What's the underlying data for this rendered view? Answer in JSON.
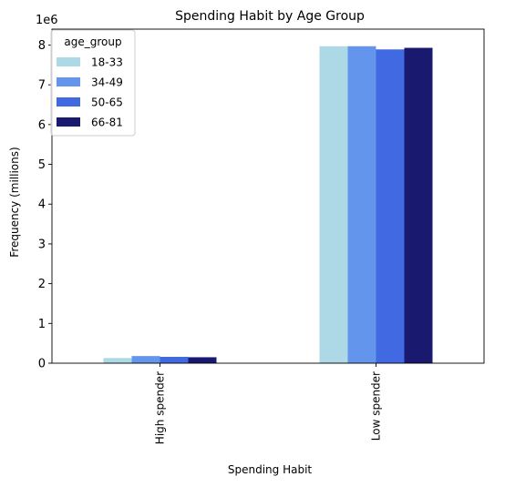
{
  "chart_data": {
    "type": "bar",
    "title": "Spending Habit by Age Group",
    "xlabel": "Spending Habit",
    "ylabel": "Frequency (millions)",
    "offset_label": "1e6",
    "categories": [
      "High spender",
      "Low spender"
    ],
    "series": [
      {
        "name": "18-33",
        "color": "#add8e6",
        "values": [
          130000,
          7970000
        ]
      },
      {
        "name": "34-49",
        "color": "#6495ed",
        "values": [
          180000,
          7970000
        ]
      },
      {
        "name": "50-65",
        "color": "#4169e1",
        "values": [
          160000,
          7890000
        ]
      },
      {
        "name": "66-81",
        "color": "#191970",
        "values": [
          150000,
          7930000
        ]
      }
    ],
    "ylim": [
      0,
      8400000
    ],
    "yticks": [
      0,
      1000000,
      2000000,
      3000000,
      4000000,
      5000000,
      6000000,
      7000000,
      8000000
    ],
    "ytick_labels": [
      "0",
      "1",
      "2",
      "3",
      "4",
      "5",
      "6",
      "7",
      "8"
    ],
    "grid": false,
    "legend": {
      "title": "age_group",
      "placement": "top-left"
    }
  }
}
